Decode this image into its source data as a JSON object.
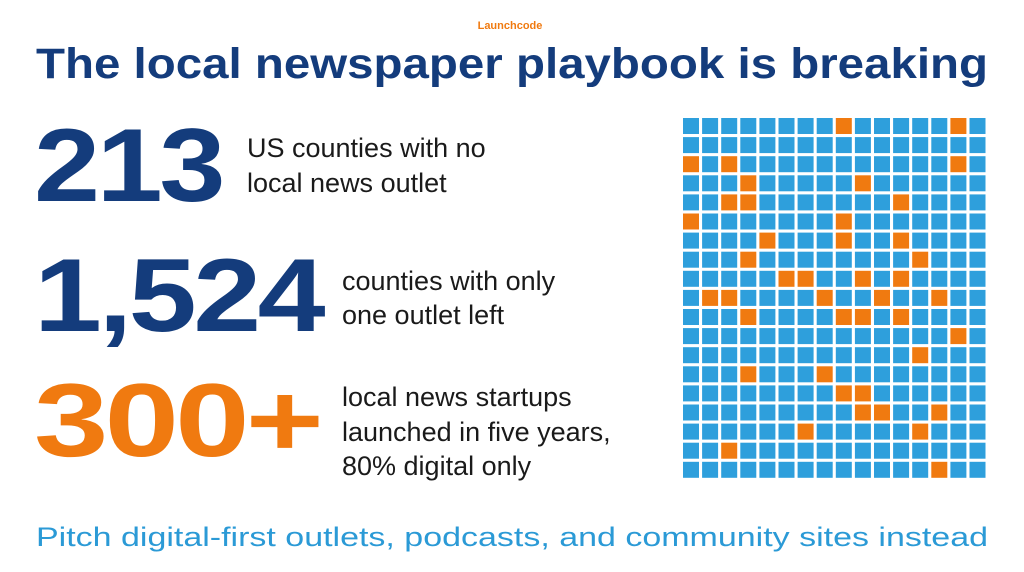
{
  "logo": "Launchcode",
  "title": "The local newspaper playbook is breaking",
  "stats": [
    {
      "number": "213",
      "caption": [
        "US counties with no",
        "local news outlet"
      ]
    },
    {
      "number": "1,524",
      "caption": [
        "counties with only",
        "one outlet left"
      ]
    },
    {
      "number": "300+",
      "caption": [
        "local news startups",
        "launched in five years,",
        "80% digital only"
      ]
    }
  ],
  "footer": "Pitch digital-first outlets, podcasts, and community sites instead"
}
